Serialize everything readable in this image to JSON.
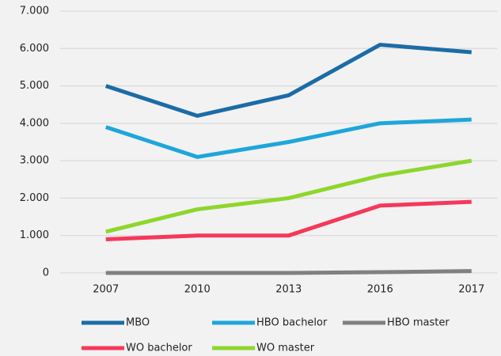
{
  "chart_data": {
    "type": "line",
    "categories": [
      "2007",
      "2010",
      "2013",
      "2016",
      "2017"
    ],
    "series": [
      {
        "name": "MBO",
        "color": "#1b6ca6",
        "values": [
          5000,
          4200,
          4750,
          6100,
          5900
        ]
      },
      {
        "name": "HBO bachelor",
        "color": "#1ea6db",
        "values": [
          3900,
          3100,
          3500,
          4000,
          4100
        ]
      },
      {
        "name": "HBO master",
        "color": "#808080",
        "values": [
          0,
          0,
          0,
          20,
          50
        ]
      },
      {
        "name": "WO bachelor",
        "color": "#f5385a",
        "values": [
          900,
          1000,
          1000,
          1800,
          1900
        ]
      },
      {
        "name": "WO master",
        "color": "#8ed62c",
        "values": [
          1100,
          1700,
          2000,
          2600,
          3000
        ]
      }
    ],
    "ylim": [
      0,
      7000
    ],
    "yticks": [
      0,
      {
        "value": 1000,
        "label": "1.000"
      },
      {
        "value": 2000,
        "label": "2.000"
      },
      {
        "value": 3000,
        "label": "3.000"
      },
      {
        "value": 4000,
        "label": "4.000"
      },
      {
        "value": 5000,
        "label": "5.000"
      },
      {
        "value": 6000,
        "label": "6.000"
      },
      {
        "value": 7000,
        "label": "7.000"
      }
    ],
    "grid": true,
    "legend": "bottom"
  }
}
